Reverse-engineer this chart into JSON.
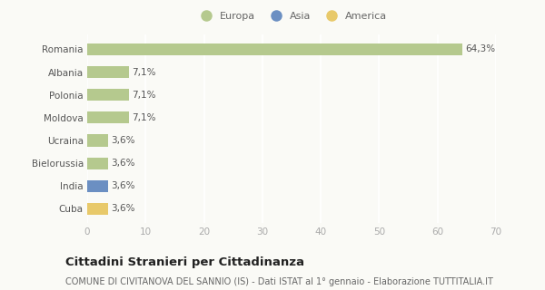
{
  "countries": [
    "Romania",
    "Albania",
    "Polonia",
    "Moldova",
    "Ucraina",
    "Bielorussia",
    "India",
    "Cuba"
  ],
  "values": [
    64.3,
    7.1,
    7.1,
    7.1,
    3.6,
    3.6,
    3.6,
    3.6
  ],
  "labels": [
    "64,3%",
    "7,1%",
    "7,1%",
    "7,1%",
    "3,6%",
    "3,6%",
    "3,6%",
    "3,6%"
  ],
  "colors": [
    "#b5c98e",
    "#b5c98e",
    "#b5c98e",
    "#b5c98e",
    "#b5c98e",
    "#b5c98e",
    "#6b8fc2",
    "#e8c96a"
  ],
  "legend": [
    {
      "label": "Europa",
      "color": "#b5c98e"
    },
    {
      "label": "Asia",
      "color": "#6b8fc2"
    },
    {
      "label": "America",
      "color": "#e8c96a"
    }
  ],
  "xlim": [
    0,
    70
  ],
  "xticks": [
    0,
    10,
    20,
    30,
    40,
    50,
    60,
    70
  ],
  "title": "Cittadini Stranieri per Cittadinanza",
  "subtitle": "COMUNE DI CIVITANOVA DEL SANNIO (IS) - Dati ISTAT al 1° gennaio - Elaborazione TUTTITALIA.IT",
  "bg_color": "#fafaf6",
  "grid_color": "#ffffff",
  "bar_label_fontsize": 7.5,
  "tick_fontsize": 7.5,
  "ytick_fontsize": 7.5,
  "title_fontsize": 9.5,
  "subtitle_fontsize": 7.0,
  "legend_fontsize": 8.0
}
